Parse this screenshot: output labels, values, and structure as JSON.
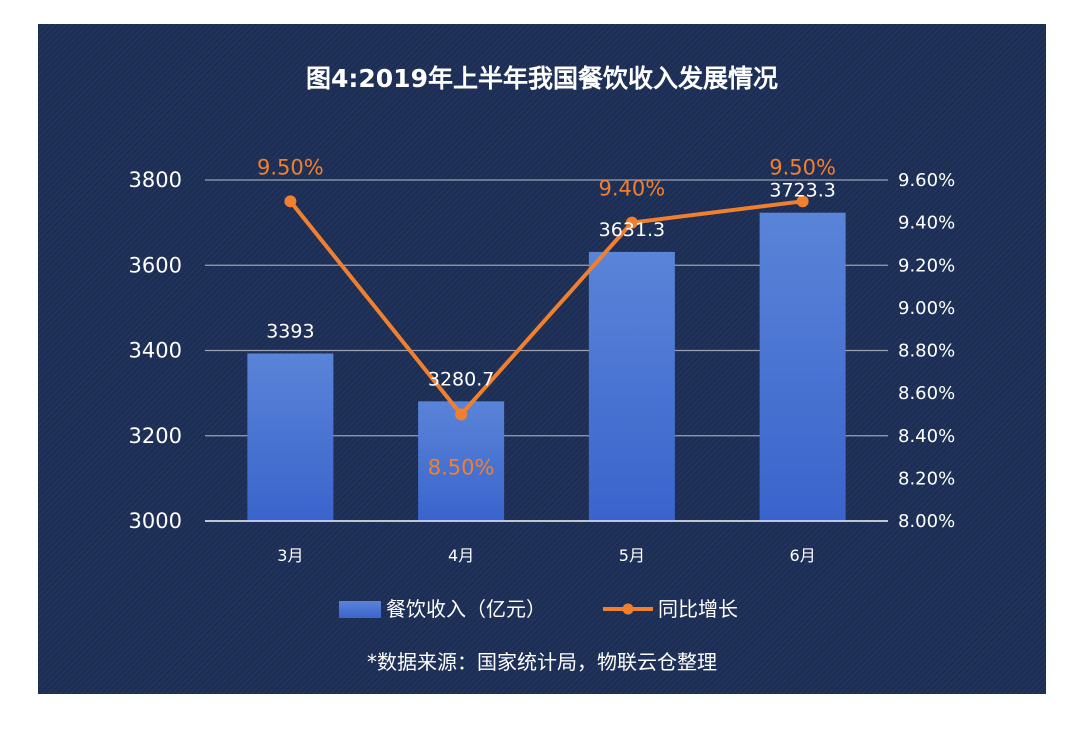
{
  "chart_data": {
    "type": "bar",
    "title": "图4:2019年上半年我国餐饮收入发展情况",
    "categories": [
      "3月",
      "4月",
      "5月",
      "6月"
    ],
    "series": [
      {
        "name": "餐饮收入（亿元）",
        "type": "bar",
        "axis": "left",
        "values": [
          3393,
          3280.7,
          3631.3,
          3723.3
        ],
        "labels": [
          "3393",
          "3280.7",
          "3631.3",
          "3723.3"
        ],
        "color": "#4a74d4"
      },
      {
        "name": "同比增长",
        "type": "line",
        "axis": "right",
        "values": [
          9.5,
          8.5,
          9.4,
          9.5
        ],
        "labels": [
          "9.50%",
          "8.50%",
          "9.40%",
          "9.50%"
        ],
        "color": "#f0802e"
      }
    ],
    "y_left": {
      "ylim": [
        3000,
        3800
      ],
      "ticks": [
        3000,
        3200,
        3400,
        3600,
        3800
      ],
      "tick_labels": [
        "3000",
        "3200",
        "3400",
        "3600",
        "3800"
      ]
    },
    "y_right": {
      "ylim": [
        8.0,
        9.6
      ],
      "ticks": [
        8.0,
        8.2,
        8.4,
        8.6,
        8.8,
        9.0,
        9.2,
        9.4,
        9.6
      ],
      "tick_labels": [
        "8.00%",
        "8.20%",
        "8.40%",
        "8.60%",
        "8.80%",
        "9.00%",
        "9.20%",
        "9.40%",
        "9.60%"
      ]
    },
    "grid": true,
    "legend_position": "bottom",
    "background_color": "#1c2e55"
  },
  "source_note": "*数据来源：国家统计局，物联云仓整理"
}
